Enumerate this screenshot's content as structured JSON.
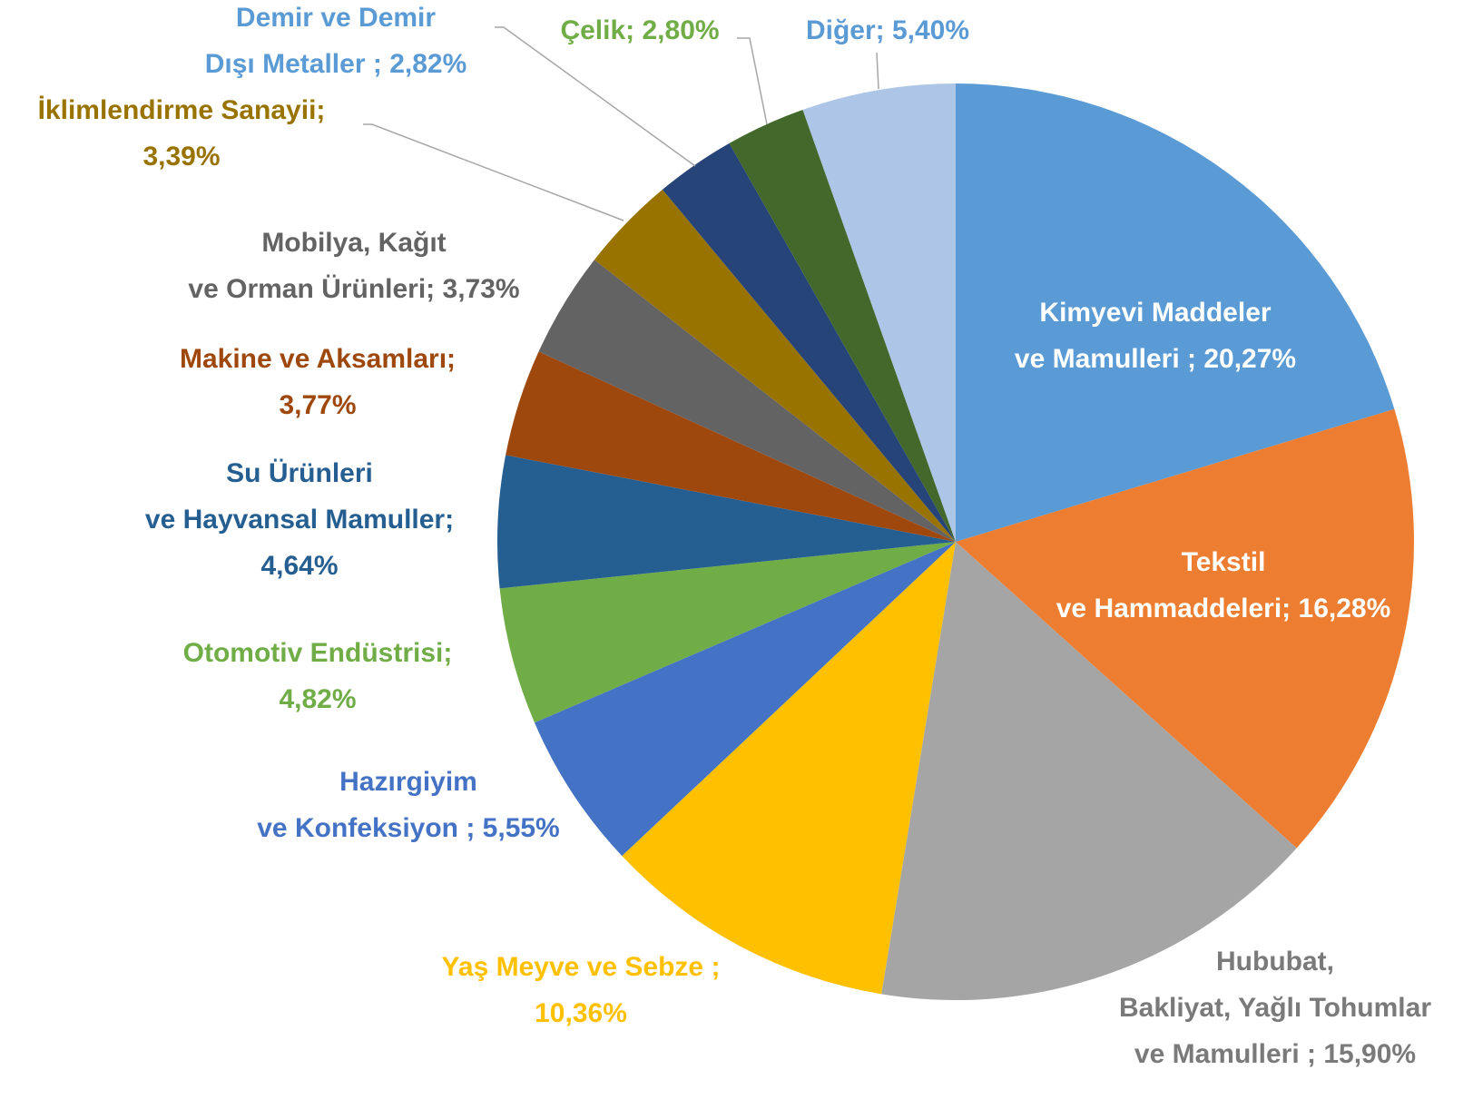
{
  "chart_data": {
    "type": "pie",
    "categories": [
      "Kimyevi Maddeler ve Mamulleri  ;",
      "Tekstil ve Hammaddeleri;",
      "Hububat, Bakliyat, Yağlı Tohumlar ve Mamulleri ;",
      "Yaş Meyve ve Sebze  ;",
      "Hazırgiyim ve Konfeksiyon ;",
      "Otomotiv Endüstrisi;",
      "Su Ürünleri ve Hayvansal Mamuller;",
      "Makine ve Aksamları;",
      "Mobilya, Kağıt ve Orman Ürünleri;",
      "İklimlendirme Sanayii;",
      "Demir ve Demir Dışı Metaller ;",
      "Çelik;",
      "Diğer;"
    ],
    "values": [
      20.27,
      16.28,
      15.9,
      10.36,
      5.55,
      4.82,
      4.64,
      3.77,
      3.73,
      3.39,
      2.82,
      2.8,
      5.4
    ],
    "value_labels": [
      "20,27%",
      "16,28%",
      "15,90%",
      "10,36%",
      "5,55%",
      "4,82%",
      "4,64%",
      "3,77%",
      "3,73%",
      "3,39%",
      "2,82%",
      "2,80%",
      "5,40%"
    ],
    "colors": [
      "#5b9bd5",
      "#ed7d31",
      "#a5a5a5",
      "#ffc000",
      "#4472c4",
      "#70ad47",
      "#255e91",
      "#9e480e",
      "#636363",
      "#997300",
      "#264478",
      "#43682b",
      "#adc5e7"
    ],
    "label_colors": [
      "#ffffff",
      "#ffffff",
      "#7a7a7a",
      "#ffc000",
      "#4472c4",
      "#70ad47",
      "#255e91",
      "#9e480e",
      "#636363",
      "#997300",
      "#5b9bd5",
      "#70ad47",
      "#5b9bd5"
    ]
  }
}
